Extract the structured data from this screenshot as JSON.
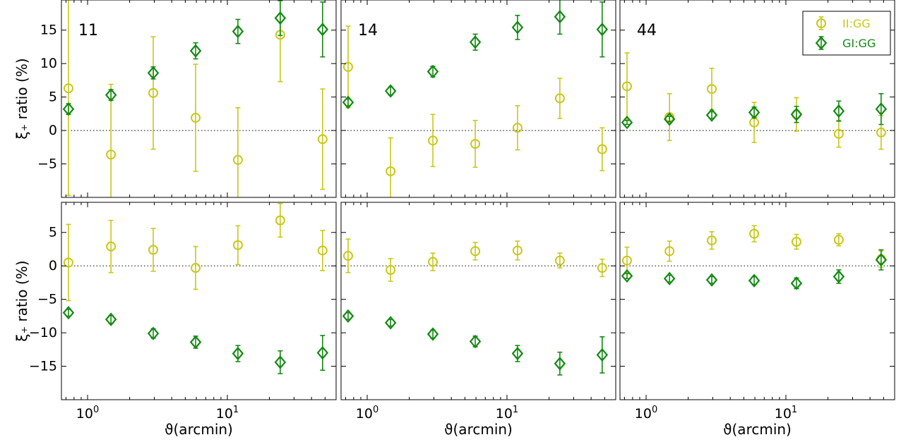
{
  "chart_data": {
    "type": "scatter",
    "x_scale": "log",
    "xlim": [
      0.65,
      60
    ],
    "xlabel": "ϑ(arcmin)",
    "ylabel": "ξ₊ ratio (%)",
    "x_ticks": [
      {
        "value": 1,
        "base": "10",
        "exp": "0"
      },
      {
        "value": 10,
        "base": "10",
        "exp": "1"
      }
    ],
    "colors": {
      "II": "#c8c81a",
      "GI": "#138a13",
      "zero_line": "#000000"
    },
    "legend": {
      "position": "top-right",
      "entries": [
        {
          "key": "II",
          "label": "II:GG",
          "marker": "circle"
        },
        {
          "key": "GI",
          "label": "GI:GG",
          "marker": "diamond"
        }
      ]
    },
    "x": [
      0.73,
      1.47,
      2.95,
      5.93,
      11.9,
      23.9,
      48.0
    ],
    "panels": [
      {
        "label": "11",
        "row": 0,
        "col": 0,
        "ylim": [
          -10,
          19.5
        ],
        "y_ticks": [
          "−5",
          "0",
          "5",
          "10",
          "15"
        ],
        "y_tick_values": [
          -5,
          0,
          5,
          10,
          15
        ],
        "series": [
          {
            "key": "II",
            "y": [
              6.3,
              -3.6,
              5.6,
              1.9,
              -4.4,
              14.3,
              -1.3
            ],
            "err": [
              16,
              10.5,
              8.4,
              8.0,
              7.8,
              7.0,
              7.5
            ]
          },
          {
            "key": "GI",
            "y": [
              3.2,
              5.3,
              8.6,
              11.9,
              14.8,
              16.8,
              15.1
            ],
            "err": [
              0.8,
              0.8,
              0.9,
              1.2,
              1.8,
              2.6,
              4.1
            ]
          }
        ]
      },
      {
        "label": "14",
        "row": 0,
        "col": 1,
        "ylim": [
          -10,
          19.5
        ],
        "y_ticks": [
          "−5",
          "0",
          "5",
          "10",
          "15"
        ],
        "y_tick_values": [
          -5,
          0,
          5,
          10,
          15
        ],
        "series": [
          {
            "key": "II",
            "y": [
              9.5,
              -6.1,
              -1.5,
              -2.0,
              0.4,
              4.8,
              -2.8
            ],
            "err": [
              6.1,
              5.0,
              3.9,
              3.5,
              3.3,
              3.0,
              3.2
            ]
          },
          {
            "key": "GI",
            "y": [
              4.2,
              5.9,
              8.8,
              13.2,
              15.4,
              17.0,
              15.1
            ],
            "err": [
              0.5,
              0.6,
              0.8,
              1.2,
              1.8,
              2.6,
              4.1
            ]
          }
        ]
      },
      {
        "label": "44",
        "row": 0,
        "col": 2,
        "ylim": [
          -10,
          19.5
        ],
        "y_ticks": [
          "−5",
          "0",
          "5",
          "10",
          "15"
        ],
        "y_tick_values": [
          -5,
          0,
          5,
          10,
          15
        ],
        "series": [
          {
            "key": "II",
            "y": [
              6.6,
              2.0,
              6.2,
              1.2,
              2.4,
              -0.5,
              -0.3
            ],
            "err": [
              5.0,
              3.5,
              3.1,
              3.0,
              2.5,
              2.0,
              2.5
            ]
          },
          {
            "key": "GI",
            "y": [
              1.2,
              1.7,
              2.3,
              2.7,
              2.4,
              2.9,
              3.2
            ],
            "err": [
              0.3,
              0.4,
              0.5,
              0.8,
              1.2,
              1.5,
              2.3
            ]
          }
        ]
      },
      {
        "label": "",
        "row": 1,
        "col": 0,
        "ylim": [
          -20,
          9.5
        ],
        "y_ticks": [
          "−15",
          "−10",
          "−5",
          "0",
          "5"
        ],
        "y_tick_values": [
          -15,
          -10,
          -5,
          0,
          5
        ],
        "series": [
          {
            "key": "II",
            "y": [
              0.5,
              2.9,
              2.4,
              -0.3,
              3.1,
              6.8,
              2.3
            ],
            "err": [
              5.7,
              3.9,
              3.2,
              3.2,
              2.9,
              2.5,
              3.0
            ]
          },
          {
            "key": "GI",
            "y": [
              -7.0,
              -8.0,
              -10.1,
              -11.4,
              -13.1,
              -14.4,
              -13.0
            ],
            "err": [
              0.5,
              0.6,
              0.7,
              0.9,
              1.2,
              1.7,
              2.6
            ]
          }
        ]
      },
      {
        "label": "",
        "row": 1,
        "col": 1,
        "ylim": [
          -20,
          9.5
        ],
        "y_ticks": [
          "−15",
          "−10",
          "−5",
          "0",
          "5"
        ],
        "y_tick_values": [
          -15,
          -10,
          -5,
          0,
          5
        ],
        "series": [
          {
            "key": "II",
            "y": [
              1.5,
              -0.6,
              0.6,
              2.2,
              2.3,
              0.8,
              -0.3
            ],
            "err": [
              2.5,
              1.7,
              1.3,
              1.3,
              1.4,
              1.1,
              1.3
            ]
          },
          {
            "key": "GI",
            "y": [
              -7.5,
              -8.5,
              -10.2,
              -11.3,
              -13.1,
              -14.6,
              -13.3
            ],
            "err": [
              0.5,
              0.5,
              0.6,
              0.8,
              1.2,
              1.7,
              2.7
            ]
          }
        ]
      },
      {
        "label": "",
        "row": 1,
        "col": 2,
        "ylim": [
          -20,
          9.5
        ],
        "y_ticks": [
          "−15",
          "−10",
          "−5",
          "0",
          "5"
        ],
        "y_tick_values": [
          -15,
          -10,
          -5,
          0,
          5
        ],
        "series": [
          {
            "key": "II",
            "y": [
              0.8,
              2.2,
              3.8,
              4.8,
              3.6,
              3.9,
              1.0
            ],
            "err": [
              2.0,
              1.5,
              1.3,
              1.2,
              1.1,
              0.9,
              1.2
            ]
          },
          {
            "key": "GI",
            "y": [
              -1.5,
              -1.9,
              -2.1,
              -2.2,
              -2.6,
              -1.6,
              0.9
            ],
            "err": [
              0.4,
              0.5,
              0.5,
              0.6,
              0.8,
              1.0,
              1.5
            ]
          }
        ]
      }
    ]
  }
}
